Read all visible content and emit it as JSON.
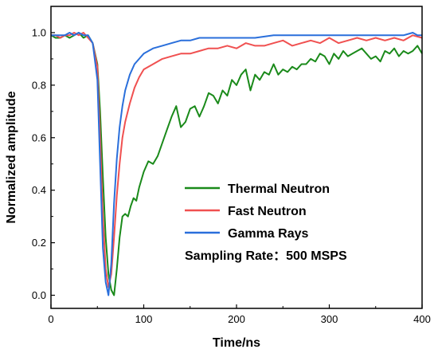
{
  "chart_data": {
    "type": "line",
    "xlabel": "Time/ns",
    "ylabel": "Normalized amplitude",
    "xlim": [
      0,
      400
    ],
    "ylim": [
      -0.05,
      1.1
    ],
    "x_ticks": [
      0,
      100,
      200,
      300,
      400
    ],
    "y_ticks": [
      0.0,
      0.2,
      0.4,
      0.6,
      0.8,
      1.0
    ],
    "grid": false,
    "legend_position": "center-right",
    "annotation": "Sampling Rate：500 MSPS",
    "series": [
      {
        "name": "Thermal Neutron",
        "color": "#1a8a1a",
        "x": [
          0,
          5,
          10,
          15,
          20,
          25,
          30,
          35,
          40,
          45,
          50,
          53,
          56,
          59,
          62,
          65,
          68,
          71,
          74,
          77,
          80,
          83,
          86,
          89,
          92,
          95,
          100,
          105,
          110,
          115,
          120,
          125,
          130,
          135,
          140,
          145,
          150,
          155,
          160,
          165,
          170,
          175,
          180,
          185,
          190,
          195,
          200,
          205,
          210,
          215,
          220,
          225,
          230,
          235,
          240,
          245,
          250,
          255,
          260,
          265,
          270,
          275,
          280,
          285,
          290,
          295,
          300,
          305,
          310,
          315,
          320,
          325,
          330,
          335,
          340,
          345,
          350,
          355,
          360,
          365,
          370,
          375,
          380,
          385,
          390,
          395,
          400
        ],
        "y": [
          0.99,
          0.98,
          0.98,
          0.99,
          0.98,
          0.99,
          1.0,
          0.98,
          0.99,
          0.96,
          0.88,
          0.7,
          0.45,
          0.22,
          0.08,
          0.02,
          0.0,
          0.1,
          0.22,
          0.3,
          0.31,
          0.3,
          0.34,
          0.37,
          0.36,
          0.41,
          0.47,
          0.51,
          0.5,
          0.53,
          0.58,
          0.63,
          0.68,
          0.72,
          0.64,
          0.66,
          0.71,
          0.72,
          0.68,
          0.72,
          0.77,
          0.76,
          0.73,
          0.78,
          0.76,
          0.82,
          0.8,
          0.84,
          0.86,
          0.78,
          0.84,
          0.82,
          0.85,
          0.84,
          0.88,
          0.84,
          0.86,
          0.85,
          0.87,
          0.86,
          0.88,
          0.88,
          0.9,
          0.89,
          0.92,
          0.91,
          0.88,
          0.92,
          0.9,
          0.93,
          0.91,
          0.92,
          0.93,
          0.94,
          0.92,
          0.9,
          0.91,
          0.89,
          0.93,
          0.92,
          0.94,
          0.91,
          0.93,
          0.92,
          0.93,
          0.95,
          0.92
        ]
      },
      {
        "name": "Fast Neutron",
        "color": "#f05050",
        "x": [
          0,
          5,
          10,
          15,
          20,
          25,
          30,
          35,
          40,
          45,
          50,
          53,
          56,
          59,
          62,
          65,
          68,
          71,
          74,
          77,
          80,
          85,
          90,
          95,
          100,
          110,
          120,
          130,
          140,
          150,
          160,
          170,
          180,
          190,
          200,
          210,
          220,
          230,
          240,
          250,
          260,
          270,
          280,
          290,
          300,
          310,
          320,
          330,
          340,
          350,
          360,
          370,
          380,
          390,
          400
        ],
        "y": [
          0.99,
          0.99,
          0.98,
          0.99,
          0.99,
          1.0,
          0.99,
          1.0,
          0.98,
          0.96,
          0.87,
          0.6,
          0.3,
          0.1,
          0.03,
          0.08,
          0.22,
          0.38,
          0.5,
          0.6,
          0.66,
          0.73,
          0.79,
          0.83,
          0.86,
          0.88,
          0.9,
          0.91,
          0.92,
          0.92,
          0.93,
          0.94,
          0.94,
          0.95,
          0.94,
          0.96,
          0.95,
          0.95,
          0.96,
          0.97,
          0.95,
          0.96,
          0.97,
          0.96,
          0.98,
          0.96,
          0.97,
          0.98,
          0.97,
          0.98,
          0.97,
          0.98,
          0.97,
          0.99,
          0.98
        ]
      },
      {
        "name": "Gamma Rays",
        "color": "#2a6fdb",
        "x": [
          0,
          5,
          10,
          15,
          20,
          25,
          30,
          35,
          40,
          45,
          50,
          53,
          56,
          59,
          62,
          65,
          68,
          71,
          74,
          77,
          80,
          85,
          90,
          95,
          100,
          110,
          120,
          130,
          140,
          150,
          160,
          170,
          180,
          190,
          200,
          220,
          240,
          260,
          280,
          300,
          320,
          340,
          360,
          380,
          390,
          395,
          400
        ],
        "y": [
          0.99,
          0.99,
          0.99,
          0.99,
          1.0,
          0.99,
          1.0,
          0.99,
          0.99,
          0.96,
          0.82,
          0.5,
          0.18,
          0.05,
          0.0,
          0.12,
          0.35,
          0.52,
          0.64,
          0.72,
          0.78,
          0.84,
          0.88,
          0.9,
          0.92,
          0.94,
          0.95,
          0.96,
          0.97,
          0.97,
          0.98,
          0.98,
          0.98,
          0.98,
          0.98,
          0.98,
          0.99,
          0.99,
          0.99,
          0.99,
          0.99,
          0.99,
          0.99,
          0.99,
          1.0,
          0.99,
          0.99
        ]
      }
    ]
  }
}
